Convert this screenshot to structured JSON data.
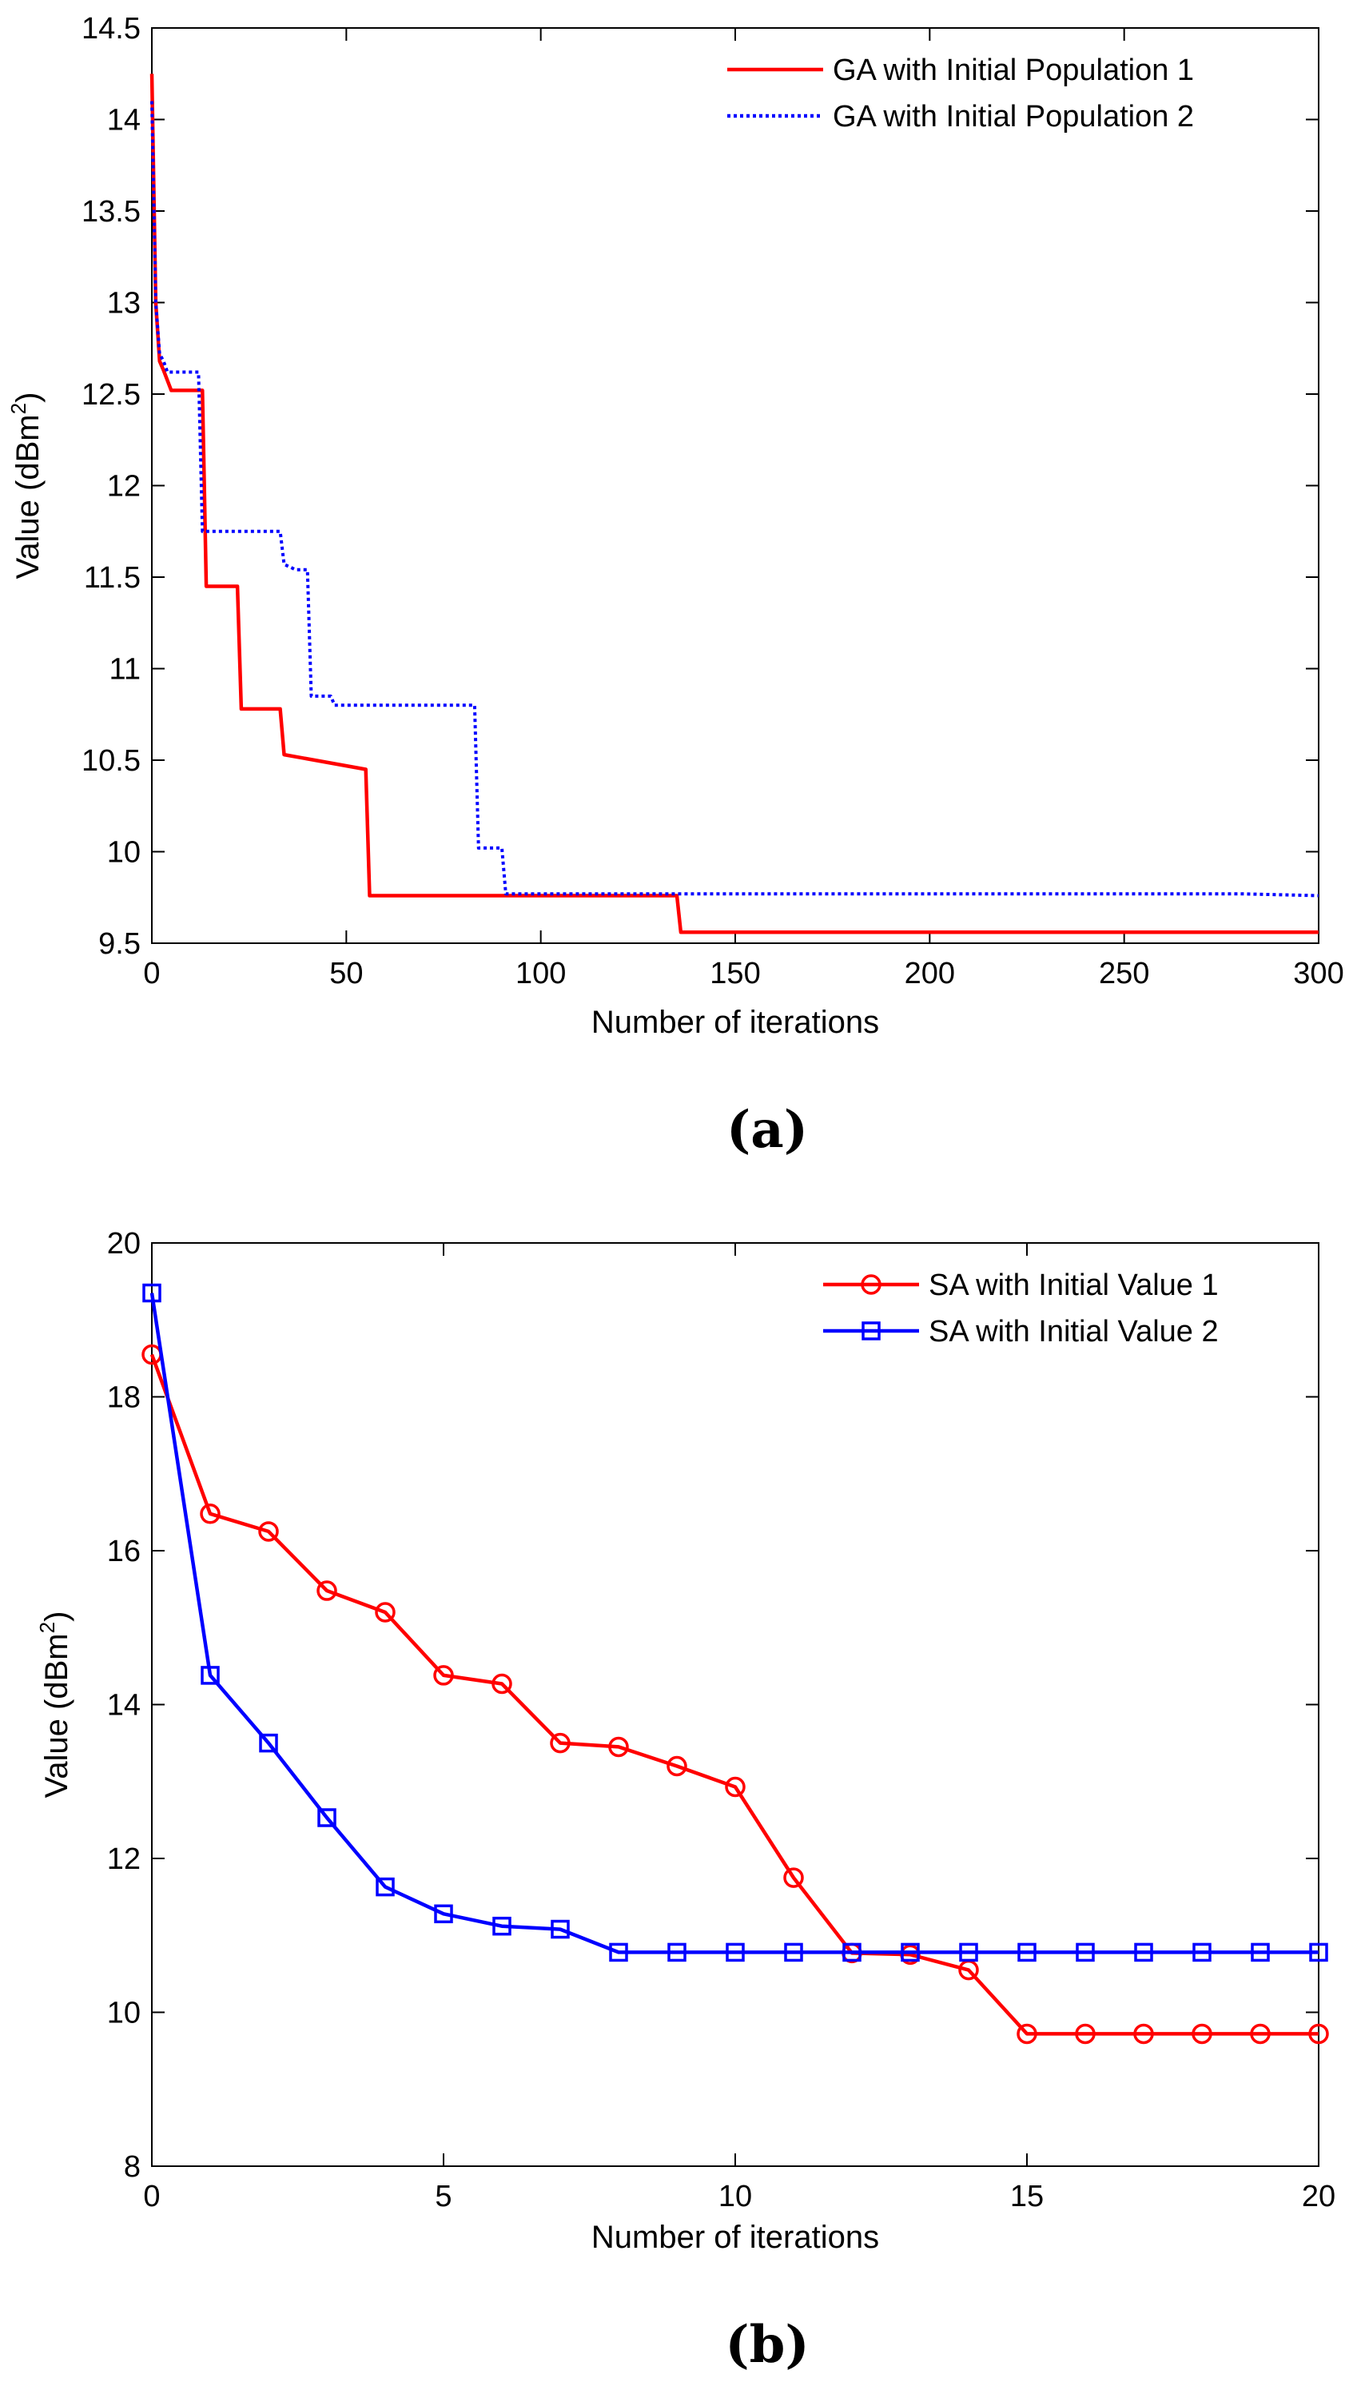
{
  "chart_data": [
    {
      "type": "line",
      "panel_label": "a",
      "caption_text": "(a)",
      "xlabel": "Number of iterations",
      "ylabel": "Value (dBm",
      "ylabel_sup": "2",
      "ylabel_close": ")",
      "xlim": [
        0,
        300
      ],
      "ylim": [
        9.5,
        14.5
      ],
      "xticks": [
        "0",
        "50",
        "100",
        "150",
        "200",
        "250",
        "300"
      ],
      "yticks": [
        "9.5",
        "10",
        "10.5",
        "11",
        "11.5",
        "12",
        "12.5",
        "13",
        "13.5",
        "14",
        "14.5"
      ],
      "grid": false,
      "legend_position": "top-right",
      "series": [
        {
          "name": "GA with Initial Population 1",
          "color": "#ff0000",
          "style": "solid",
          "marker": "none",
          "x": [
            0,
            1,
            2,
            3,
            5,
            13,
            14,
            22,
            23,
            33,
            34,
            55,
            56,
            57,
            135,
            136,
            300
          ],
          "y": [
            14.25,
            13.0,
            12.68,
            12.63,
            12.52,
            12.52,
            11.45,
            11.45,
            10.78,
            10.78,
            10.53,
            10.45,
            9.76,
            9.76,
            9.76,
            9.56,
            9.56
          ]
        },
        {
          "name": "GA with Initial Population 2",
          "color": "#0000ff",
          "style": "dotted",
          "marker": "none",
          "x": [
            0,
            1,
            2,
            3,
            4,
            12,
            13,
            33,
            34,
            37,
            40,
            41,
            46,
            47,
            83,
            84,
            90,
            91,
            280,
            300
          ],
          "y": [
            14.1,
            13.0,
            12.72,
            12.68,
            12.62,
            12.62,
            11.75,
            11.75,
            11.57,
            11.54,
            11.54,
            10.85,
            10.85,
            10.8,
            10.8,
            10.02,
            10.02,
            9.77,
            9.77,
            9.76
          ]
        }
      ]
    },
    {
      "type": "line",
      "panel_label": "b",
      "caption_text": "(b)",
      "xlabel": "Number of iterations",
      "ylabel": "Value (dBm",
      "ylabel_sup": "2",
      "ylabel_close": ")",
      "xlim": [
        0,
        20
      ],
      "ylim": [
        8,
        20
      ],
      "xticks": [
        "0",
        "5",
        "10",
        "15",
        "20"
      ],
      "yticks": [
        "8",
        "10",
        "12",
        "14",
        "16",
        "18",
        "20"
      ],
      "grid": false,
      "legend_position": "top-right",
      "series": [
        {
          "name": "SA with Initial Value 1",
          "color": "#ff0000",
          "style": "solid",
          "marker": "circle",
          "x": [
            0,
            1,
            2,
            3,
            4,
            5,
            6,
            7,
            8,
            9,
            10,
            11,
            12,
            13,
            14,
            15,
            16,
            17,
            18,
            19,
            20
          ],
          "y": [
            18.55,
            16.48,
            16.25,
            15.48,
            15.2,
            14.38,
            14.27,
            13.5,
            13.45,
            13.2,
            12.93,
            11.75,
            10.77,
            10.75,
            10.55,
            9.72,
            9.72,
            9.72,
            9.72,
            9.72,
            9.72
          ]
        },
        {
          "name": "SA with Initial Value 2",
          "color": "#0000ff",
          "style": "solid",
          "marker": "square",
          "x": [
            0,
            1,
            2,
            3,
            4,
            5,
            6,
            7,
            8,
            9,
            10,
            11,
            12,
            13,
            14,
            15,
            16,
            17,
            18,
            19,
            20
          ],
          "y": [
            19.35,
            14.38,
            13.5,
            12.53,
            11.63,
            11.28,
            11.12,
            11.08,
            10.78,
            10.78,
            10.78,
            10.78,
            10.78,
            10.78,
            10.78,
            10.78,
            10.78,
            10.78,
            10.78,
            10.78,
            10.78
          ]
        }
      ]
    }
  ]
}
